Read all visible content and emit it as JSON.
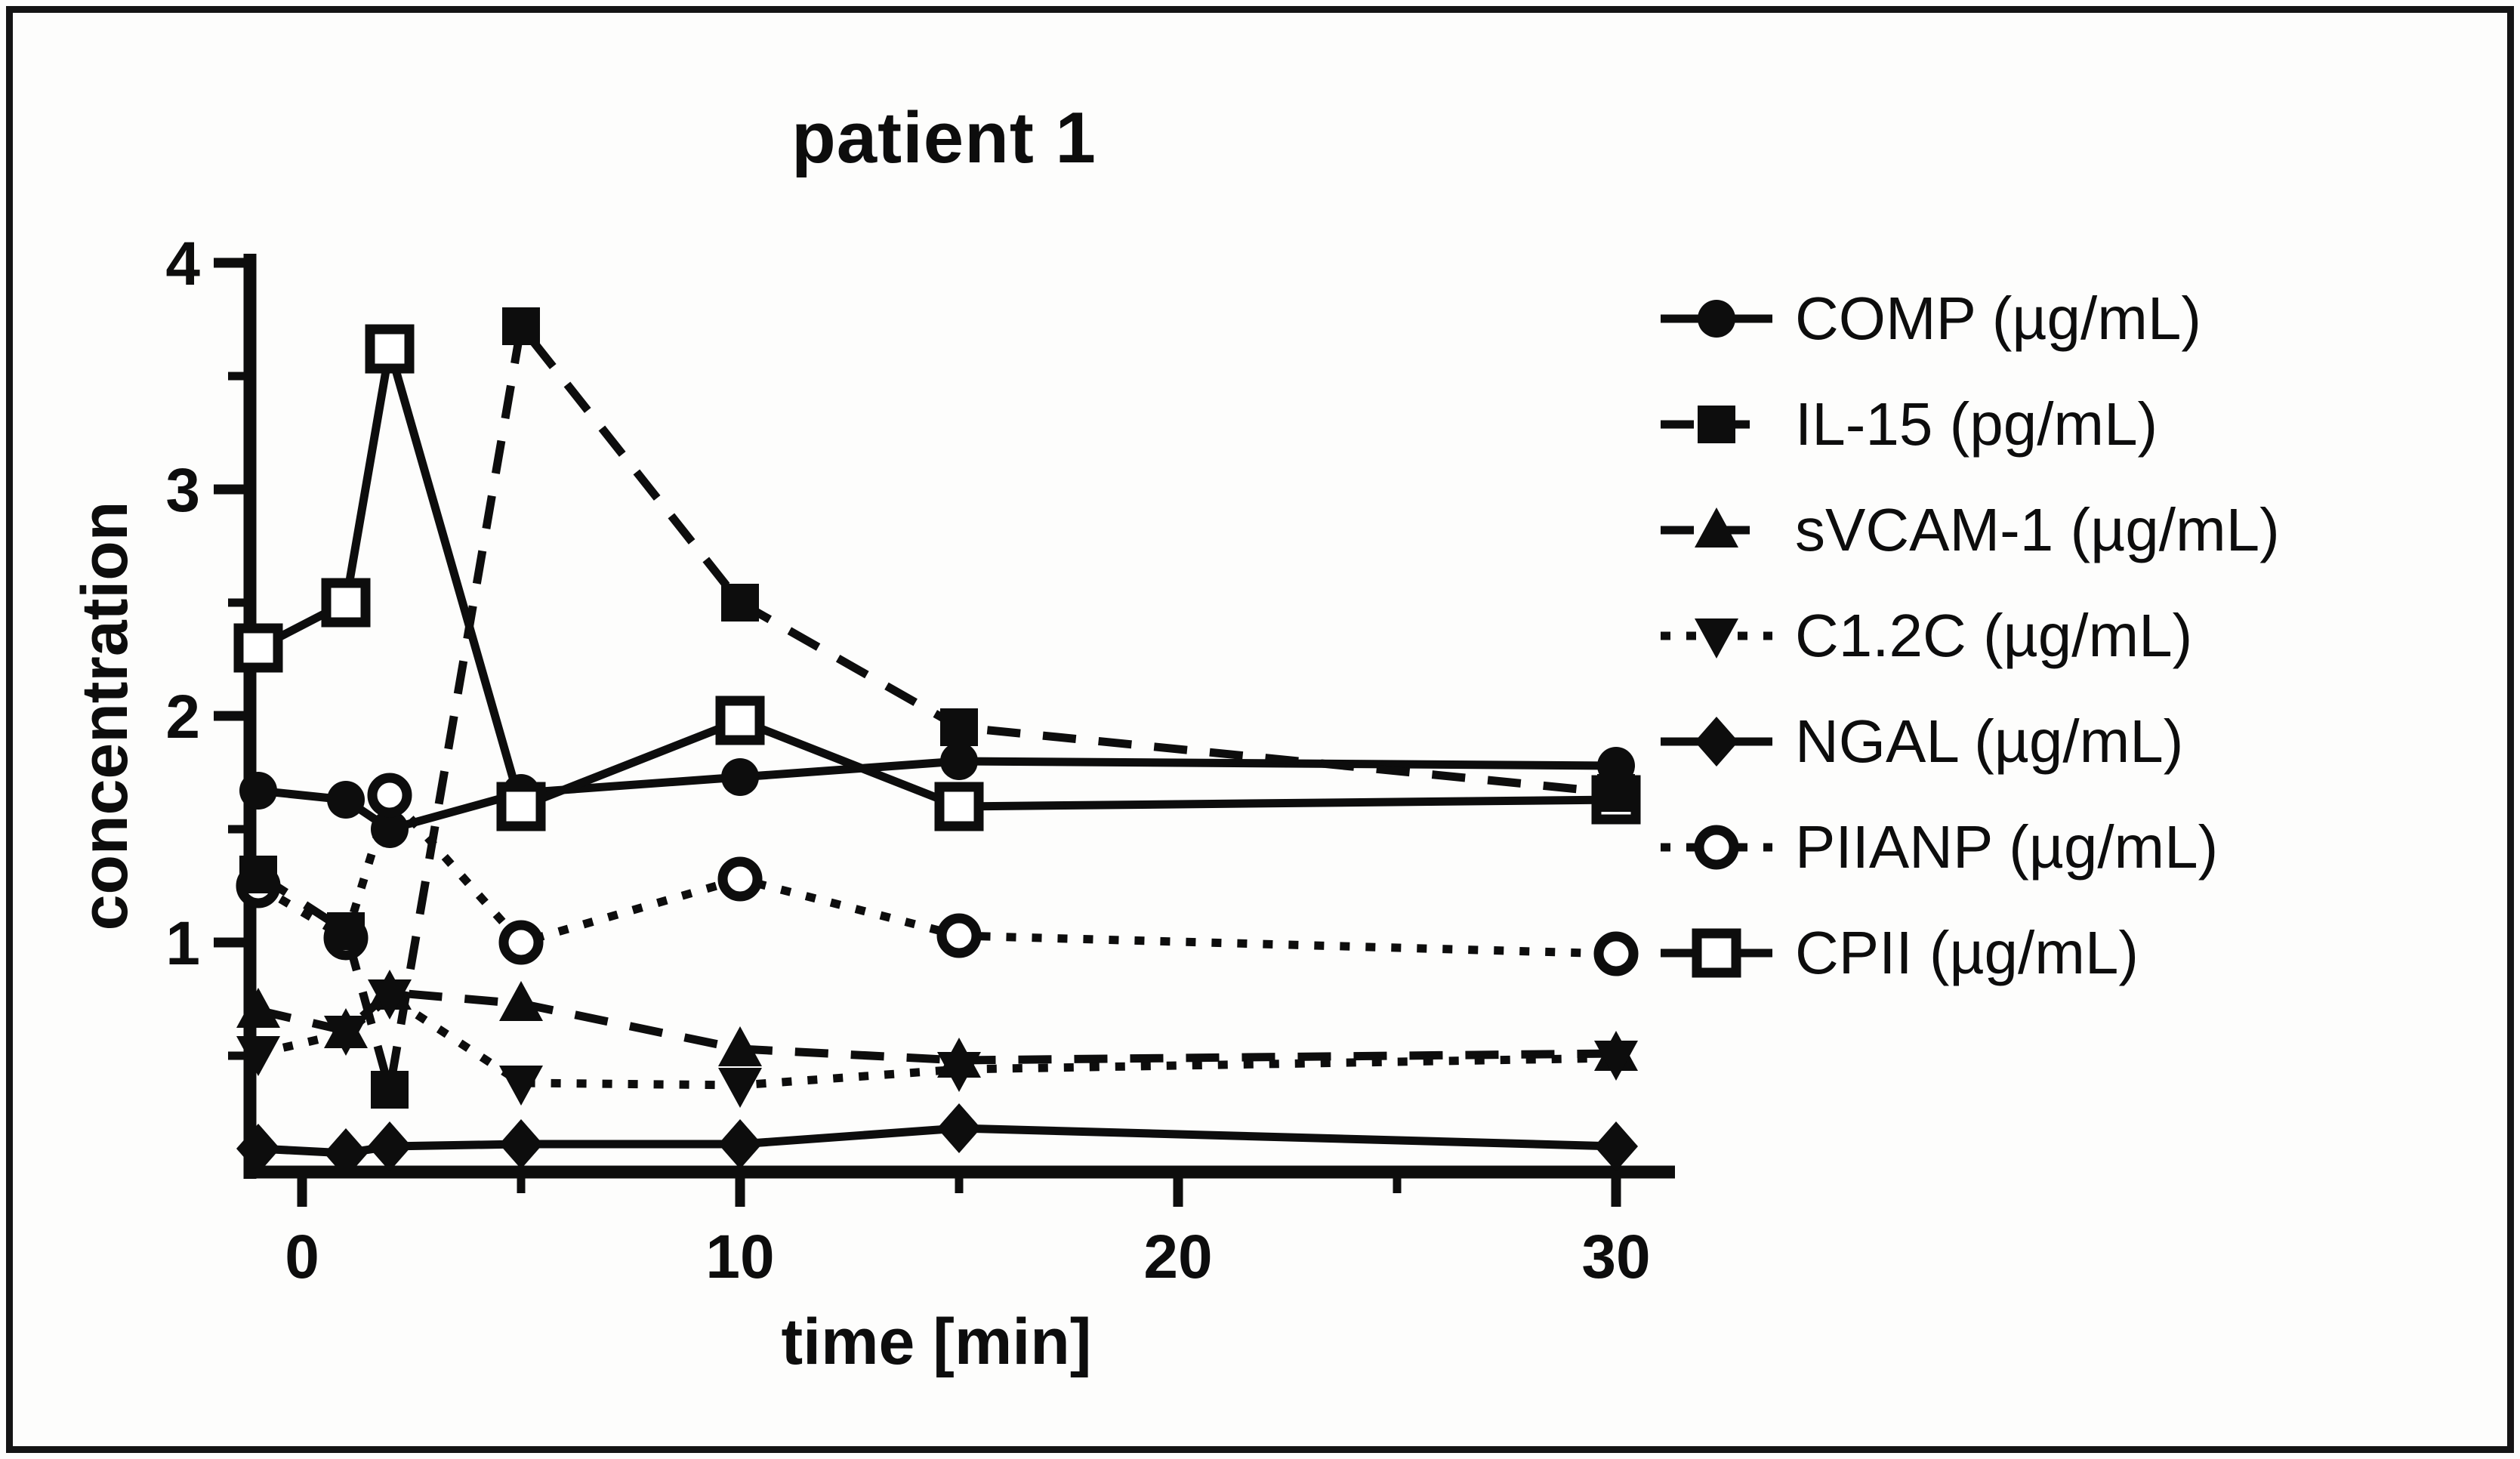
{
  "figure": {
    "title": "patient 1",
    "background": "#ffffff",
    "ink": "#0d0d0d"
  },
  "chart_data": {
    "type": "line",
    "title": "patient 1",
    "xlabel": "time [min]",
    "ylabel": "concentration",
    "x": [
      -1,
      1,
      2,
      5,
      10,
      15,
      30
    ],
    "xlim": [
      -2.5,
      31.5
    ],
    "ylim": [
      0,
      4
    ],
    "x_major_ticks": [
      0,
      10,
      20,
      30
    ],
    "x_minor_ticks": [
      5,
      15,
      25
    ],
    "y_major_ticks": [
      4,
      3,
      2,
      1
    ],
    "y_minor_ticks": [
      3.5,
      2.5,
      1.5,
      0.5
    ],
    "grid": false,
    "legend_position": "right",
    "series": [
      {
        "id": "comp",
        "name": "COMP (µg/mL)",
        "marker": "circle-filled",
        "line": "solid",
        "values": [
          1.67,
          1.63,
          1.5,
          1.66,
          1.73,
          1.8,
          1.78
        ]
      },
      {
        "id": "il15",
        "name": "IL-15 (pg/mL)",
        "marker": "square-filled",
        "line": "dashed",
        "values": [
          1.3,
          1.05,
          0.35,
          3.72,
          2.5,
          1.95,
          1.66
        ]
      },
      {
        "id": "svcam1",
        "name": "sVCAM-1 (µg/mL)",
        "marker": "triangle-up-filled",
        "line": "dashed",
        "values": [
          0.7,
          0.61,
          0.78,
          0.73,
          0.53,
          0.48,
          0.51
        ]
      },
      {
        "id": "c12c",
        "name": "C1.2C (µg/mL)",
        "marker": "triangle-down-filled",
        "line": "dotted",
        "values": [
          0.51,
          0.6,
          0.76,
          0.38,
          0.37,
          0.44,
          0.49
        ]
      },
      {
        "id": "ngal",
        "name": "NGAL (µg/mL)",
        "marker": "diamond-filled",
        "line": "solid",
        "values": [
          0.09,
          0.07,
          0.1,
          0.11,
          0.11,
          0.18,
          0.1
        ]
      },
      {
        "id": "piianp",
        "name": "PIIANP (µg/mL)",
        "marker": "circle-open",
        "line": "dotted",
        "values": [
          1.25,
          1.02,
          1.65,
          1.0,
          1.28,
          1.03,
          0.95
        ]
      },
      {
        "id": "cpii",
        "name": "CPII (µg/mL)",
        "marker": "square-open",
        "line": "solid",
        "values": [
          2.3,
          2.5,
          3.62,
          1.6,
          1.98,
          1.6,
          1.63
        ]
      }
    ]
  }
}
